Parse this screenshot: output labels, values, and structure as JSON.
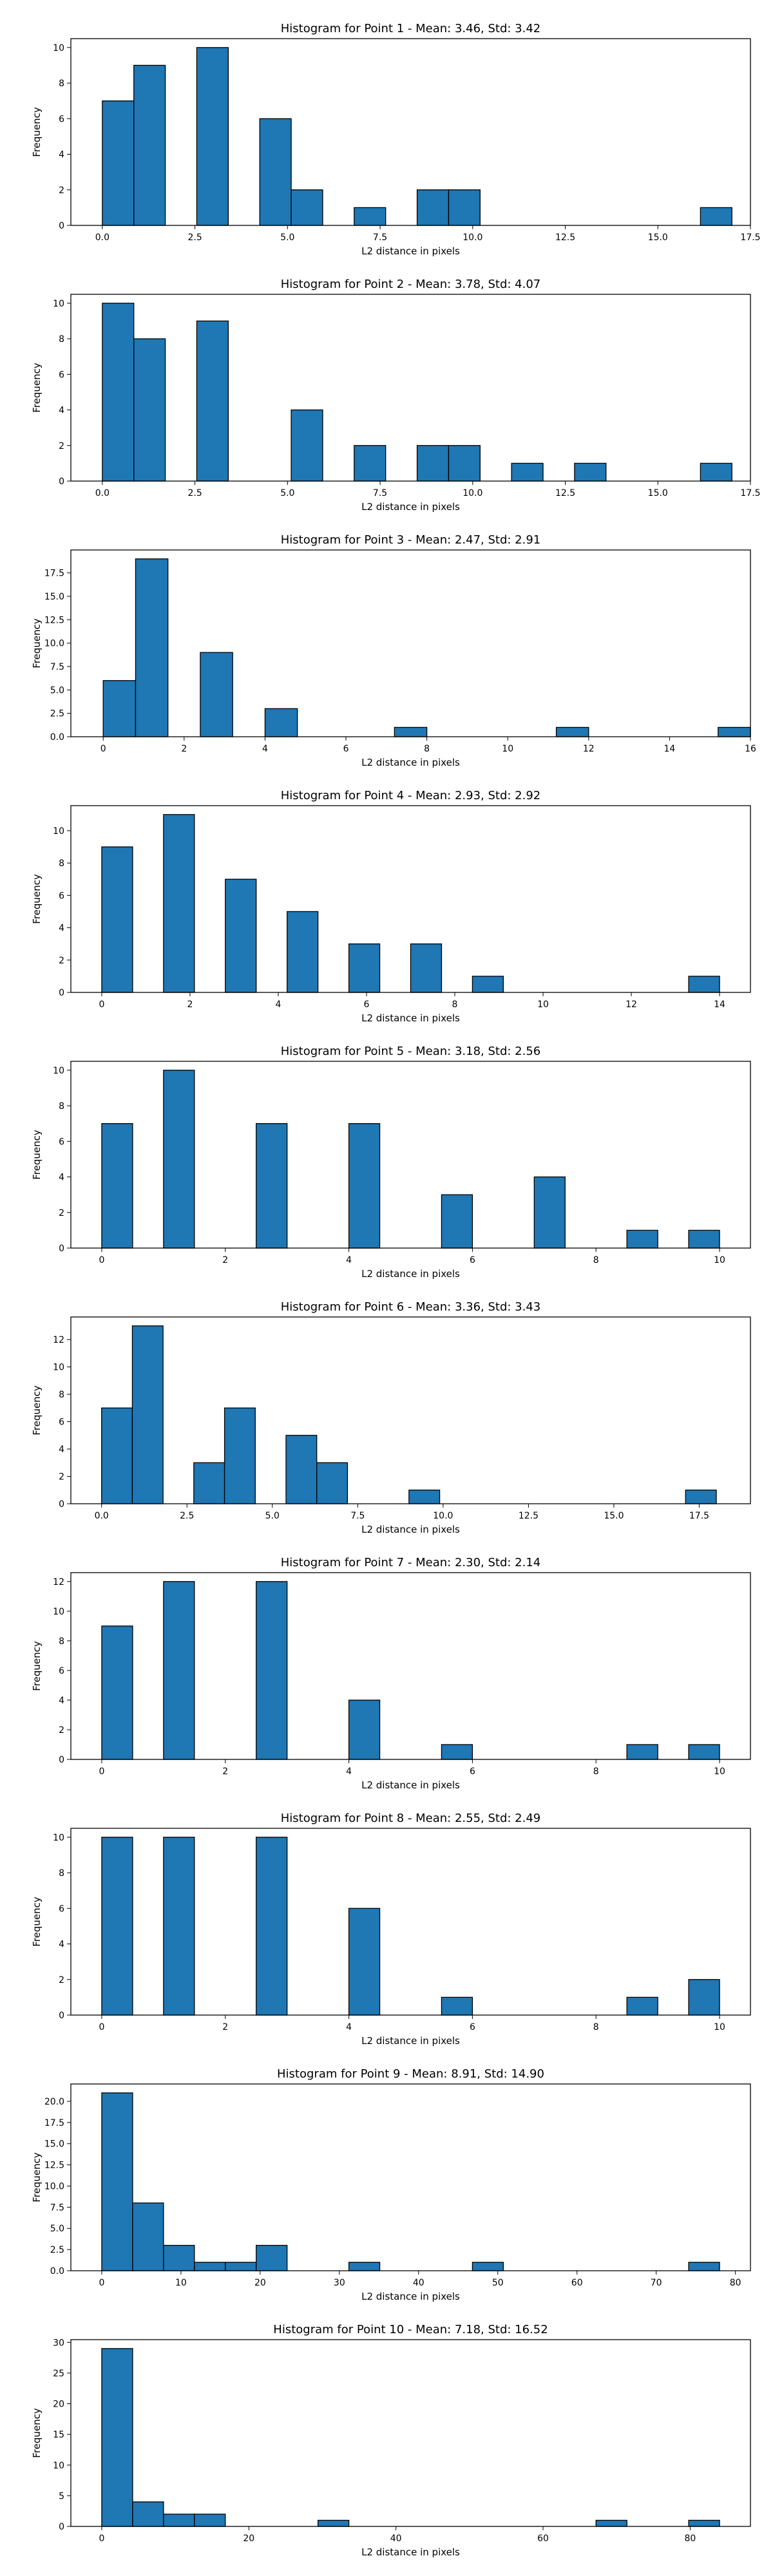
{
  "chart_data": [
    {
      "type": "bar",
      "title": "Histogram for Point 1 - Mean: 3.46, Std: 3.42",
      "xlabel": "L2 distance in pixels",
      "ylabel": "Frequency",
      "xlim": [
        -0.85,
        17.5
      ],
      "ylim": [
        0,
        10.5
      ],
      "xticks": [
        "0.0",
        "2.5",
        "5.0",
        "7.5",
        "10.0",
        "12.5",
        "15.0",
        "17.5"
      ],
      "yticks": [
        "0",
        "2",
        "4",
        "6",
        "8",
        "10"
      ],
      "bin_edges": [
        0,
        0.85,
        1.7,
        2.55,
        3.4,
        4.25,
        5.1,
        5.95,
        6.8,
        7.65,
        8.5,
        9.35,
        10.2,
        11.05,
        11.9,
        12.75,
        13.6,
        14.45,
        15.3,
        16.15,
        17.0
      ],
      "values": [
        7,
        9,
        0,
        10,
        0,
        6,
        2,
        0,
        1,
        0,
        2,
        2,
        0,
        0,
        0,
        0,
        0,
        0,
        0,
        1
      ],
      "grid": false,
      "bar_color": "#1f77b4"
    },
    {
      "type": "bar",
      "title": "Histogram for Point 2 - Mean: 3.78, Std: 4.07",
      "xlabel": "L2 distance in pixels",
      "ylabel": "Frequency",
      "xlim": [
        -0.85,
        17.5
      ],
      "ylim": [
        0,
        10.5
      ],
      "xticks": [
        "0.0",
        "2.5",
        "5.0",
        "7.5",
        "10.0",
        "12.5",
        "15.0",
        "17.5"
      ],
      "yticks": [
        "0",
        "2",
        "4",
        "6",
        "8",
        "10"
      ],
      "bin_edges": [
        0,
        0.85,
        1.7,
        2.55,
        3.4,
        4.25,
        5.1,
        5.95,
        6.8,
        7.65,
        8.5,
        9.35,
        10.2,
        11.05,
        11.9,
        12.75,
        13.6,
        14.45,
        15.3,
        16.15,
        17.0
      ],
      "values": [
        10,
        8,
        0,
        9,
        0,
        0,
        4,
        0,
        2,
        0,
        2,
        2,
        0,
        1,
        0,
        1,
        0,
        0,
        0,
        1
      ],
      "grid": false,
      "bar_color": "#1f77b4"
    },
    {
      "type": "bar",
      "title": "Histogram for Point 3 - Mean: 2.47, Std: 2.91",
      "xlabel": "L2 distance in pixels",
      "ylabel": "Frequency",
      "xlim": [
        -0.8,
        16.0
      ],
      "ylim": [
        0,
        19.95
      ],
      "xticks": [
        "0",
        "2",
        "4",
        "6",
        "8",
        "10",
        "12",
        "14",
        "16"
      ],
      "yticks": [
        "0.0",
        "2.5",
        "5.0",
        "7.5",
        "10.0",
        "12.5",
        "15.0",
        "17.5"
      ],
      "bin_edges": [
        0,
        0.8,
        1.6,
        2.4,
        3.2,
        4.0,
        4.8,
        5.6,
        6.4,
        7.2,
        8.0,
        8.8,
        9.6,
        10.4,
        11.2,
        12.0,
        12.8,
        13.6,
        14.4,
        15.2,
        16.0
      ],
      "values": [
        6,
        19,
        0,
        9,
        0,
        3,
        0,
        0,
        0,
        1,
        0,
        0,
        0,
        0,
        1,
        0,
        0,
        0,
        0,
        1
      ],
      "grid": false,
      "bar_color": "#1f77b4"
    },
    {
      "type": "bar",
      "title": "Histogram for Point 4 - Mean: 2.93, Std: 2.92",
      "xlabel": "L2 distance in pixels",
      "ylabel": "Frequency",
      "xlim": [
        -0.7,
        14.7
      ],
      "ylim": [
        0,
        11.55
      ],
      "xticks": [
        "0",
        "2",
        "4",
        "6",
        "8",
        "10",
        "12",
        "14"
      ],
      "yticks": [
        "0",
        "2",
        "4",
        "6",
        "8",
        "10"
      ],
      "bin_edges": [
        0,
        0.7,
        1.4,
        2.1,
        2.8,
        3.5,
        4.2,
        4.9,
        5.6,
        6.3,
        7.0,
        7.7,
        8.4,
        9.1,
        9.8,
        10.5,
        11.2,
        11.9,
        12.6,
        13.3,
        14.0
      ],
      "values": [
        9,
        0,
        11,
        0,
        7,
        0,
        5,
        0,
        3,
        0,
        3,
        0,
        1,
        0,
        0,
        0,
        0,
        0,
        0,
        1
      ],
      "grid": false,
      "bar_color": "#1f77b4"
    },
    {
      "type": "bar",
      "title": "Histogram for Point 5 - Mean: 3.18, Std: 2.56",
      "xlabel": "L2 distance in pixels",
      "ylabel": "Frequency",
      "xlim": [
        -0.5,
        10.5
      ],
      "ylim": [
        0,
        10.5
      ],
      "xticks": [
        "0",
        "2",
        "4",
        "6",
        "8",
        "10"
      ],
      "yticks": [
        "0",
        "2",
        "4",
        "6",
        "8",
        "10"
      ],
      "bin_edges": [
        0,
        0.5,
        1.0,
        1.5,
        2.0,
        2.5,
        3.0,
        3.5,
        4.0,
        4.5,
        5.0,
        5.5,
        6.0,
        6.5,
        7.0,
        7.5,
        8.0,
        8.5,
        9.0,
        9.5,
        10.0
      ],
      "values": [
        7,
        0,
        10,
        0,
        0,
        7,
        0,
        0,
        7,
        0,
        0,
        3,
        0,
        0,
        4,
        0,
        0,
        1,
        0,
        1
      ],
      "grid": false,
      "bar_color": "#1f77b4"
    },
    {
      "type": "bar",
      "title": "Histogram for Point 6 - Mean: 3.36, Std: 3.43",
      "xlabel": "L2 distance in pixels",
      "ylabel": "Frequency",
      "xlim": [
        -0.9,
        19.0
      ],
      "ylim": [
        0,
        13.65
      ],
      "xticks": [
        "0.0",
        "2.5",
        "5.0",
        "7.5",
        "10.0",
        "12.5",
        "15.0",
        "17.5"
      ],
      "yticks": [
        "0",
        "2",
        "4",
        "6",
        "8",
        "10",
        "12"
      ],
      "bin_edges": [
        0,
        0.9,
        1.8,
        2.7,
        3.6,
        4.5,
        5.4,
        6.3,
        7.2,
        8.1,
        9.0,
        9.9,
        10.8,
        11.7,
        12.6,
        13.5,
        14.4,
        15.3,
        16.2,
        17.1,
        18.0
      ],
      "values": [
        7,
        13,
        0,
        3,
        7,
        0,
        5,
        3,
        0,
        0,
        1,
        0,
        0,
        0,
        0,
        0,
        0,
        0,
        0,
        1
      ],
      "grid": false,
      "bar_color": "#1f77b4"
    },
    {
      "type": "bar",
      "title": "Histogram for Point 7 - Mean: 2.30, Std: 2.14",
      "xlabel": "L2 distance in pixels",
      "ylabel": "Frequency",
      "xlim": [
        -0.5,
        10.5
      ],
      "ylim": [
        0,
        12.6
      ],
      "xticks": [
        "0",
        "2",
        "4",
        "6",
        "8",
        "10"
      ],
      "yticks": [
        "0",
        "2",
        "4",
        "6",
        "8",
        "10",
        "12"
      ],
      "bin_edges": [
        0,
        0.5,
        1.0,
        1.5,
        2.0,
        2.5,
        3.0,
        3.5,
        4.0,
        4.5,
        5.0,
        5.5,
        6.0,
        6.5,
        7.0,
        7.5,
        8.0,
        8.5,
        9.0,
        9.5,
        10.0
      ],
      "values": [
        9,
        0,
        12,
        0,
        0,
        12,
        0,
        0,
        4,
        0,
        0,
        1,
        0,
        0,
        0,
        0,
        0,
        1,
        0,
        1
      ],
      "grid": false,
      "bar_color": "#1f77b4"
    },
    {
      "type": "bar",
      "title": "Histogram for Point 8 - Mean: 2.55, Std: 2.49",
      "xlabel": "L2 distance in pixels",
      "ylabel": "Frequency",
      "xlim": [
        -0.5,
        10.5
      ],
      "ylim": [
        0,
        10.5
      ],
      "xticks": [
        "0",
        "2",
        "4",
        "6",
        "8",
        "10"
      ],
      "yticks": [
        "0",
        "2",
        "4",
        "6",
        "8",
        "10"
      ],
      "bin_edges": [
        0,
        0.5,
        1.0,
        1.5,
        2.0,
        2.5,
        3.0,
        3.5,
        4.0,
        4.5,
        5.0,
        5.5,
        6.0,
        6.5,
        7.0,
        7.5,
        8.0,
        8.5,
        9.0,
        9.5,
        10.0
      ],
      "values": [
        10,
        0,
        10,
        0,
        0,
        10,
        0,
        0,
        6,
        0,
        0,
        1,
        0,
        0,
        0,
        0,
        0,
        1,
        0,
        2
      ],
      "grid": false,
      "bar_color": "#1f77b4"
    },
    {
      "type": "bar",
      "title": "Histogram for Point 9 - Mean: 8.91, Std: 14.90",
      "xlabel": "L2 distance in pixels",
      "ylabel": "Frequency",
      "xlim": [
        -3.9,
        81.9
      ],
      "ylim": [
        0,
        22.05
      ],
      "xticks": [
        "0",
        "10",
        "20",
        "30",
        "40",
        "50",
        "60",
        "70",
        "80"
      ],
      "yticks": [
        "0.0",
        "2.5",
        "5.0",
        "7.5",
        "10.0",
        "12.5",
        "15.0",
        "17.5",
        "20.0"
      ],
      "bin_edges": [
        0,
        3.9,
        7.8,
        11.7,
        15.6,
        19.5,
        23.4,
        27.3,
        31.2,
        35.1,
        39.0,
        42.9,
        46.8,
        50.7,
        54.6,
        58.5,
        62.4,
        66.3,
        70.2,
        74.1,
        78.0
      ],
      "values": [
        21,
        8,
        3,
        1,
        1,
        3,
        0,
        0,
        1,
        0,
        0,
        0,
        1,
        0,
        0,
        0,
        0,
        0,
        0,
        1
      ],
      "grid": false,
      "bar_color": "#1f77b4"
    },
    {
      "type": "bar",
      "title": "Histogram for Point 10 - Mean: 7.18, Std: 16.52",
      "xlabel": "L2 distance in pixels",
      "ylabel": "Frequency",
      "xlim": [
        -4.2,
        88.2
      ],
      "ylim": [
        0,
        30.45
      ],
      "xticks": [
        "0",
        "20",
        "40",
        "60",
        "80"
      ],
      "yticks": [
        "0",
        "5",
        "10",
        "15",
        "20",
        "25",
        "30"
      ],
      "bin_edges": [
        0,
        4.2,
        8.4,
        12.6,
        16.8,
        21.0,
        25.2,
        29.4,
        33.6,
        37.8,
        42.0,
        46.2,
        50.4,
        54.6,
        58.8,
        63.0,
        67.2,
        71.4,
        75.6,
        79.8,
        84.0
      ],
      "values": [
        29,
        4,
        2,
        2,
        0,
        0,
        0,
        1,
        0,
        0,
        0,
        0,
        0,
        0,
        0,
        0,
        1,
        0,
        0,
        1
      ],
      "grid": false,
      "bar_color": "#1f77b4"
    }
  ]
}
